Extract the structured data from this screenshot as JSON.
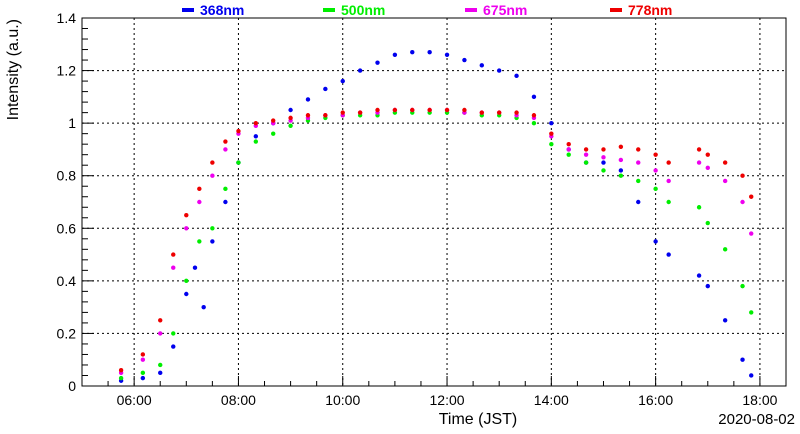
{
  "chart_data": {
    "type": "scatter",
    "xlabel": "Time (JST)",
    "ylabel": "Intensity (a.u.)",
    "date": "2020-08-02",
    "xlim": [
      "05:00",
      "18:30"
    ],
    "ylim": [
      0,
      1.4
    ],
    "x_ticks": [
      "06:00",
      "08:00",
      "10:00",
      "12:00",
      "14:00",
      "16:00",
      "18:00"
    ],
    "y_ticks": [
      "0",
      "0.2",
      "0.4",
      "0.6",
      "0.8",
      "1",
      "1.2",
      "1.4"
    ],
    "grid": true,
    "legend_position": "top",
    "series": [
      {
        "name": "368nm",
        "color": "#0000ee",
        "points": [
          [
            "05:45",
            0.02
          ],
          [
            "06:10",
            0.03
          ],
          [
            "06:30",
            0.05
          ],
          [
            "06:45",
            0.15
          ],
          [
            "07:00",
            0.35
          ],
          [
            "07:10",
            0.45
          ],
          [
            "07:20",
            0.3
          ],
          [
            "07:30",
            0.55
          ],
          [
            "07:45",
            0.7
          ],
          [
            "08:00",
            0.85
          ],
          [
            "08:20",
            0.95
          ],
          [
            "08:40",
            1.0
          ],
          [
            "09:00",
            1.05
          ],
          [
            "09:20",
            1.09
          ],
          [
            "09:40",
            1.13
          ],
          [
            "10:00",
            1.16
          ],
          [
            "10:20",
            1.2
          ],
          [
            "10:40",
            1.23
          ],
          [
            "11:00",
            1.26
          ],
          [
            "11:20",
            1.27
          ],
          [
            "11:40",
            1.27
          ],
          [
            "12:00",
            1.26
          ],
          [
            "12:20",
            1.24
          ],
          [
            "12:40",
            1.22
          ],
          [
            "13:00",
            1.2
          ],
          [
            "13:20",
            1.18
          ],
          [
            "13:40",
            1.1
          ],
          [
            "14:00",
            1.0
          ],
          [
            "14:20",
            0.9
          ],
          [
            "14:40",
            0.85
          ],
          [
            "15:00",
            0.85
          ],
          [
            "15:20",
            0.82
          ],
          [
            "15:40",
            0.7
          ],
          [
            "16:00",
            0.55
          ],
          [
            "16:15",
            0.5
          ],
          [
            "16:50",
            0.42
          ],
          [
            "17:00",
            0.38
          ],
          [
            "17:20",
            0.25
          ],
          [
            "17:40",
            0.1
          ],
          [
            "17:50",
            0.04
          ]
        ]
      },
      {
        "name": "500nm",
        "color": "#00ee00",
        "points": [
          [
            "05:45",
            0.03
          ],
          [
            "06:10",
            0.05
          ],
          [
            "06:30",
            0.08
          ],
          [
            "06:45",
            0.2
          ],
          [
            "07:00",
            0.4
          ],
          [
            "07:15",
            0.55
          ],
          [
            "07:30",
            0.6
          ],
          [
            "07:45",
            0.75
          ],
          [
            "08:00",
            0.85
          ],
          [
            "08:20",
            0.93
          ],
          [
            "08:40",
            0.96
          ],
          [
            "09:00",
            0.99
          ],
          [
            "09:20",
            1.01
          ],
          [
            "09:40",
            1.02
          ],
          [
            "10:00",
            1.03
          ],
          [
            "10:20",
            1.03
          ],
          [
            "10:40",
            1.03
          ],
          [
            "11:00",
            1.04
          ],
          [
            "11:20",
            1.04
          ],
          [
            "11:40",
            1.04
          ],
          [
            "12:00",
            1.04
          ],
          [
            "12:20",
            1.04
          ],
          [
            "12:40",
            1.03
          ],
          [
            "13:00",
            1.03
          ],
          [
            "13:20",
            1.02
          ],
          [
            "13:40",
            1.0
          ],
          [
            "14:00",
            0.92
          ],
          [
            "14:20",
            0.88
          ],
          [
            "14:40",
            0.85
          ],
          [
            "15:00",
            0.82
          ],
          [
            "15:20",
            0.8
          ],
          [
            "15:40",
            0.78
          ],
          [
            "16:00",
            0.75
          ],
          [
            "16:15",
            0.7
          ],
          [
            "16:50",
            0.68
          ],
          [
            "17:00",
            0.62
          ],
          [
            "17:20",
            0.52
          ],
          [
            "17:40",
            0.38
          ],
          [
            "17:50",
            0.28
          ]
        ]
      },
      {
        "name": "675nm",
        "color": "#ee00ee",
        "points": [
          [
            "05:45",
            0.05
          ],
          [
            "06:10",
            0.1
          ],
          [
            "06:30",
            0.2
          ],
          [
            "06:45",
            0.45
          ],
          [
            "07:00",
            0.6
          ],
          [
            "07:15",
            0.7
          ],
          [
            "07:30",
            0.8
          ],
          [
            "07:45",
            0.9
          ],
          [
            "08:00",
            0.96
          ],
          [
            "08:20",
            0.99
          ],
          [
            "08:40",
            1.0
          ],
          [
            "09:00",
            1.01
          ],
          [
            "09:20",
            1.02
          ],
          [
            "09:40",
            1.03
          ],
          [
            "10:00",
            1.03
          ],
          [
            "10:20",
            1.04
          ],
          [
            "10:40",
            1.04
          ],
          [
            "11:00",
            1.05
          ],
          [
            "11:20",
            1.05
          ],
          [
            "11:40",
            1.05
          ],
          [
            "12:00",
            1.05
          ],
          [
            "12:20",
            1.04
          ],
          [
            "12:40",
            1.04
          ],
          [
            "13:00",
            1.04
          ],
          [
            "13:20",
            1.03
          ],
          [
            "13:40",
            1.02
          ],
          [
            "14:00",
            0.95
          ],
          [
            "14:20",
            0.9
          ],
          [
            "14:40",
            0.88
          ],
          [
            "15:00",
            0.87
          ],
          [
            "15:20",
            0.86
          ],
          [
            "15:40",
            0.85
          ],
          [
            "16:00",
            0.82
          ],
          [
            "16:15",
            0.78
          ],
          [
            "16:50",
            0.85
          ],
          [
            "17:00",
            0.83
          ],
          [
            "17:20",
            0.78
          ],
          [
            "17:40",
            0.7
          ],
          [
            "17:50",
            0.58
          ]
        ]
      },
      {
        "name": "778nm",
        "color": "#ee0000",
        "points": [
          [
            "05:45",
            0.06
          ],
          [
            "06:10",
            0.12
          ],
          [
            "06:30",
            0.25
          ],
          [
            "06:45",
            0.5
          ],
          [
            "07:00",
            0.65
          ],
          [
            "07:15",
            0.75
          ],
          [
            "07:30",
            0.85
          ],
          [
            "07:45",
            0.93
          ],
          [
            "08:00",
            0.97
          ],
          [
            "08:20",
            1.0
          ],
          [
            "08:40",
            1.01
          ],
          [
            "09:00",
            1.02
          ],
          [
            "09:20",
            1.03
          ],
          [
            "09:40",
            1.03
          ],
          [
            "10:00",
            1.04
          ],
          [
            "10:20",
            1.04
          ],
          [
            "10:40",
            1.05
          ],
          [
            "11:00",
            1.05
          ],
          [
            "11:20",
            1.05
          ],
          [
            "11:40",
            1.05
          ],
          [
            "12:00",
            1.05
          ],
          [
            "12:20",
            1.05
          ],
          [
            "12:40",
            1.04
          ],
          [
            "13:00",
            1.04
          ],
          [
            "13:20",
            1.04
          ],
          [
            "13:40",
            1.03
          ],
          [
            "14:00",
            0.96
          ],
          [
            "14:20",
            0.92
          ],
          [
            "14:40",
            0.9
          ],
          [
            "15:00",
            0.9
          ],
          [
            "15:20",
            0.91
          ],
          [
            "15:40",
            0.9
          ],
          [
            "16:00",
            0.88
          ],
          [
            "16:15",
            0.85
          ],
          [
            "16:50",
            0.9
          ],
          [
            "17:00",
            0.88
          ],
          [
            "17:20",
            0.85
          ],
          [
            "17:40",
            0.8
          ],
          [
            "17:50",
            0.72
          ]
        ]
      }
    ]
  }
}
